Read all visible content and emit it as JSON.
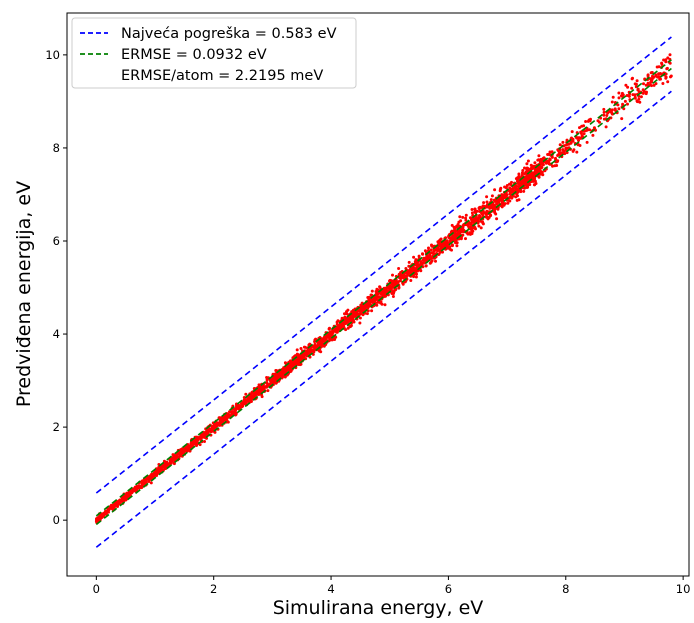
{
  "chart_data": {
    "type": "scatter",
    "xlabel": "Simulirana energy, eV",
    "ylabel": "Predviđena energija, eV",
    "xlim": [
      -0.5,
      10.1
    ],
    "ylim": [
      -1.2,
      10.9
    ],
    "xticks": [
      "0",
      "2",
      "4",
      "6",
      "8",
      "10"
    ],
    "yticks": [
      "0",
      "2",
      "4",
      "6",
      "8",
      "10"
    ],
    "grid": false,
    "legend_position": "top-left",
    "series": [
      {
        "name": "Najveća pogreška = 0.583 eV",
        "kind": "dashed-line",
        "color": "#0000ff",
        "segments": [
          {
            "x": [
              0,
              9.8
            ],
            "y": [
              0.583,
              10.383
            ]
          },
          {
            "x": [
              0,
              9.8
            ],
            "y": [
              -0.583,
              9.217
            ]
          }
        ]
      },
      {
        "name": "ERMSE = 0.0932 eV",
        "kind": "dashed-line",
        "color": "#008000",
        "segments": [
          {
            "x": [
              0,
              9.8
            ],
            "y": [
              0.0932,
              9.8932
            ]
          },
          {
            "x": [
              0,
              9.8
            ],
            "y": [
              -0.0932,
              9.7068
            ]
          }
        ]
      },
      {
        "name": "ERMSE/atom = 2.2195 meV",
        "kind": "legend-text-only"
      },
      {
        "kind": "scatter-points",
        "color": "#ff0000",
        "count": 3000,
        "x_range": [
          0,
          9.85
        ],
        "description_units": "simulated vs predicted energy, eV"
      }
    ]
  }
}
